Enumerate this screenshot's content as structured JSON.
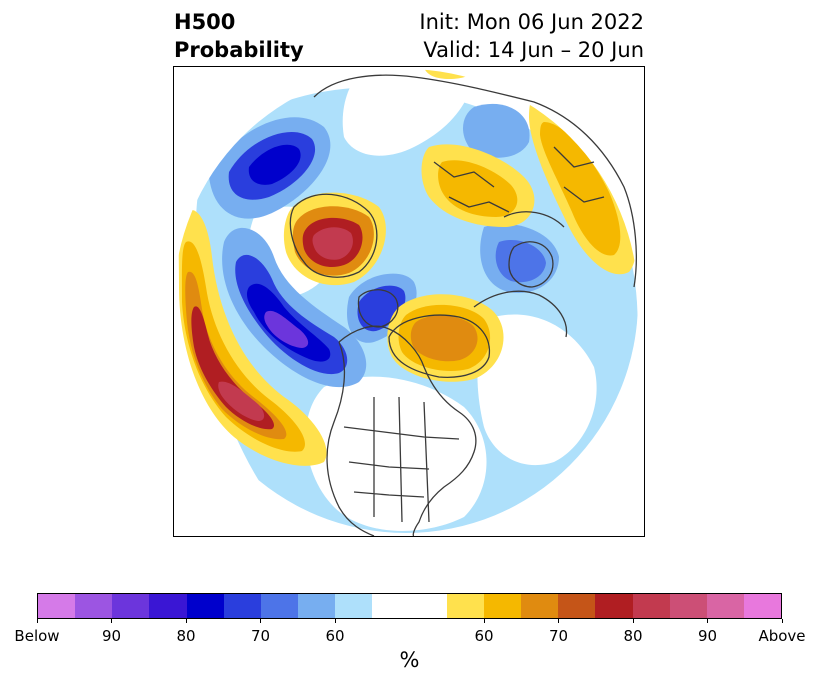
{
  "title": {
    "left_line1": "H500",
    "left_line2": "Probability",
    "right_line1": "Init: Mon 06 Jun 2022",
    "right_line2": "Valid: 14 Jun – 20 Jun"
  },
  "colorbar": {
    "colors": [
      "#d57ae8",
      "#9c55e2",
      "#6c35dc",
      "#3a16d4",
      "#0000cc",
      "#2a3edd",
      "#4d74e8",
      "#77aef0",
      "#aee0fb",
      "#ffffff",
      "#ffffff",
      "#ffe14d",
      "#f5b800",
      "#e08b10",
      "#c55518",
      "#b01e22",
      "#c23a4f",
      "#cc4f76",
      "#d965a4",
      "#e878dd"
    ],
    "tick_labels": [
      "Below",
      "90",
      "80",
      "70",
      "60",
      "60",
      "70",
      "80",
      "90",
      "Above"
    ],
    "unit_label": "%"
  },
  "map": {
    "colors": {
      "below_60": "#aee0fb",
      "below_65": "#77aef0",
      "below_70": "#4d74e8",
      "below_75": "#2a3edd",
      "below_80": "#0000cc",
      "below_85": "#3a16d4",
      "below_90": "#6c35dc",
      "above_60": "#ffe14d",
      "above_65": "#f5b800",
      "above_70": "#e08b10",
      "above_75": "#c55518",
      "above_80": "#b01e22",
      "above_85": "#c23a4f",
      "coast": "#3a3a3a"
    }
  }
}
